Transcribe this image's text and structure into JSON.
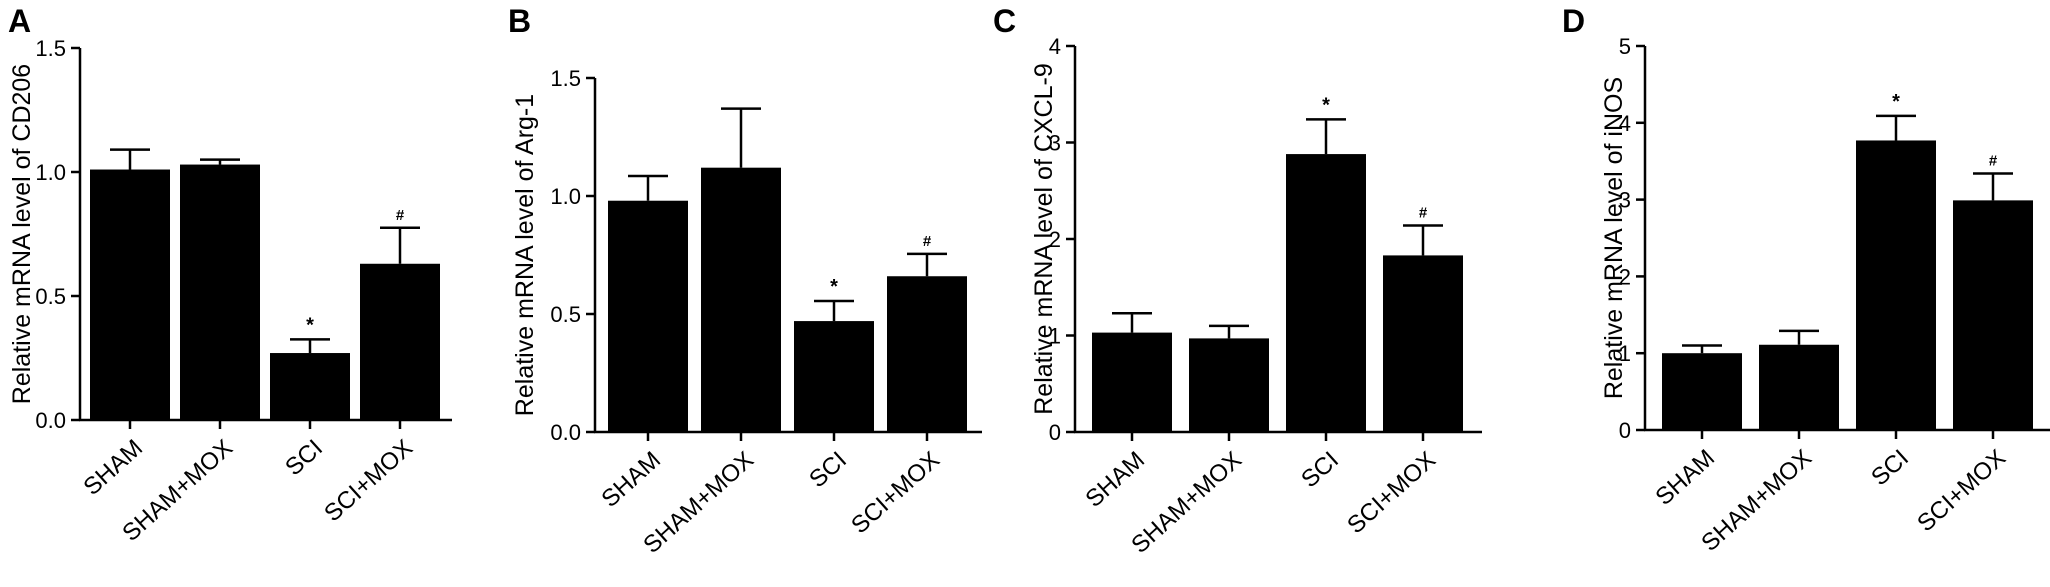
{
  "chart_data": [
    {
      "type": "bar",
      "panel": "A",
      "categories": [
        "SHAM",
        "SHAM+MOX",
        "SCI",
        "SCI+MOX"
      ],
      "values": [
        1.01,
        1.03,
        0.27,
        0.63
      ],
      "errors": [
        0.08,
        0.02,
        0.055,
        0.145
      ],
      "annotations": [
        "",
        "",
        "*",
        "#"
      ],
      "ylabel": "Relative mRNA level of CD206",
      "ylim": [
        0,
        1.5
      ],
      "yticks": [
        "0.0",
        "0.5",
        "1.0",
        "1.5"
      ],
      "grid": false,
      "bar_color": "#000000"
    },
    {
      "type": "bar",
      "panel": "B",
      "categories": [
        "SHAM",
        "SHAM+MOX",
        "SCI",
        "SCI+MOX"
      ],
      "values": [
        0.98,
        1.12,
        0.47,
        0.66
      ],
      "errors": [
        0.105,
        0.25,
        0.085,
        0.095
      ],
      "annotations": [
        "",
        "",
        "*",
        "#"
      ],
      "ylabel": "Relative mRNA level of Arg-1",
      "ylim": [
        0,
        1.5
      ],
      "yticks": [
        "0.0",
        "0.5",
        "1.0",
        "1.5"
      ],
      "grid": false,
      "bar_color": "#000000"
    },
    {
      "type": "bar",
      "panel": "C",
      "categories": [
        "SHAM",
        "SHAM+MOX",
        "SCI",
        "SCI+MOX"
      ],
      "values": [
        1.03,
        0.97,
        2.88,
        1.83
      ],
      "errors": [
        0.2,
        0.13,
        0.36,
        0.31
      ],
      "annotations": [
        "",
        "",
        "*",
        "#"
      ],
      "ylabel": "Relative mRNA level of CXCL-9",
      "ylim": [
        0,
        4
      ],
      "yticks": [
        "0",
        "1",
        "2",
        "3",
        "4"
      ],
      "grid": false,
      "bar_color": "#000000"
    },
    {
      "type": "bar",
      "panel": "D",
      "categories": [
        "SHAM",
        "SHAM+MOX",
        "SCI",
        "SCI+MOX"
      ],
      "values": [
        1.0,
        1.11,
        3.77,
        2.99
      ],
      "errors": [
        0.1,
        0.18,
        0.32,
        0.35
      ],
      "annotations": [
        "",
        "",
        "*",
        "#"
      ],
      "ylabel": "Relative mRNA level of iNOS",
      "ylim": [
        0,
        5
      ],
      "yticks": [
        "0",
        "1",
        "2",
        "3",
        "4",
        "5"
      ],
      "grid": false,
      "bar_color": "#000000"
    }
  ]
}
